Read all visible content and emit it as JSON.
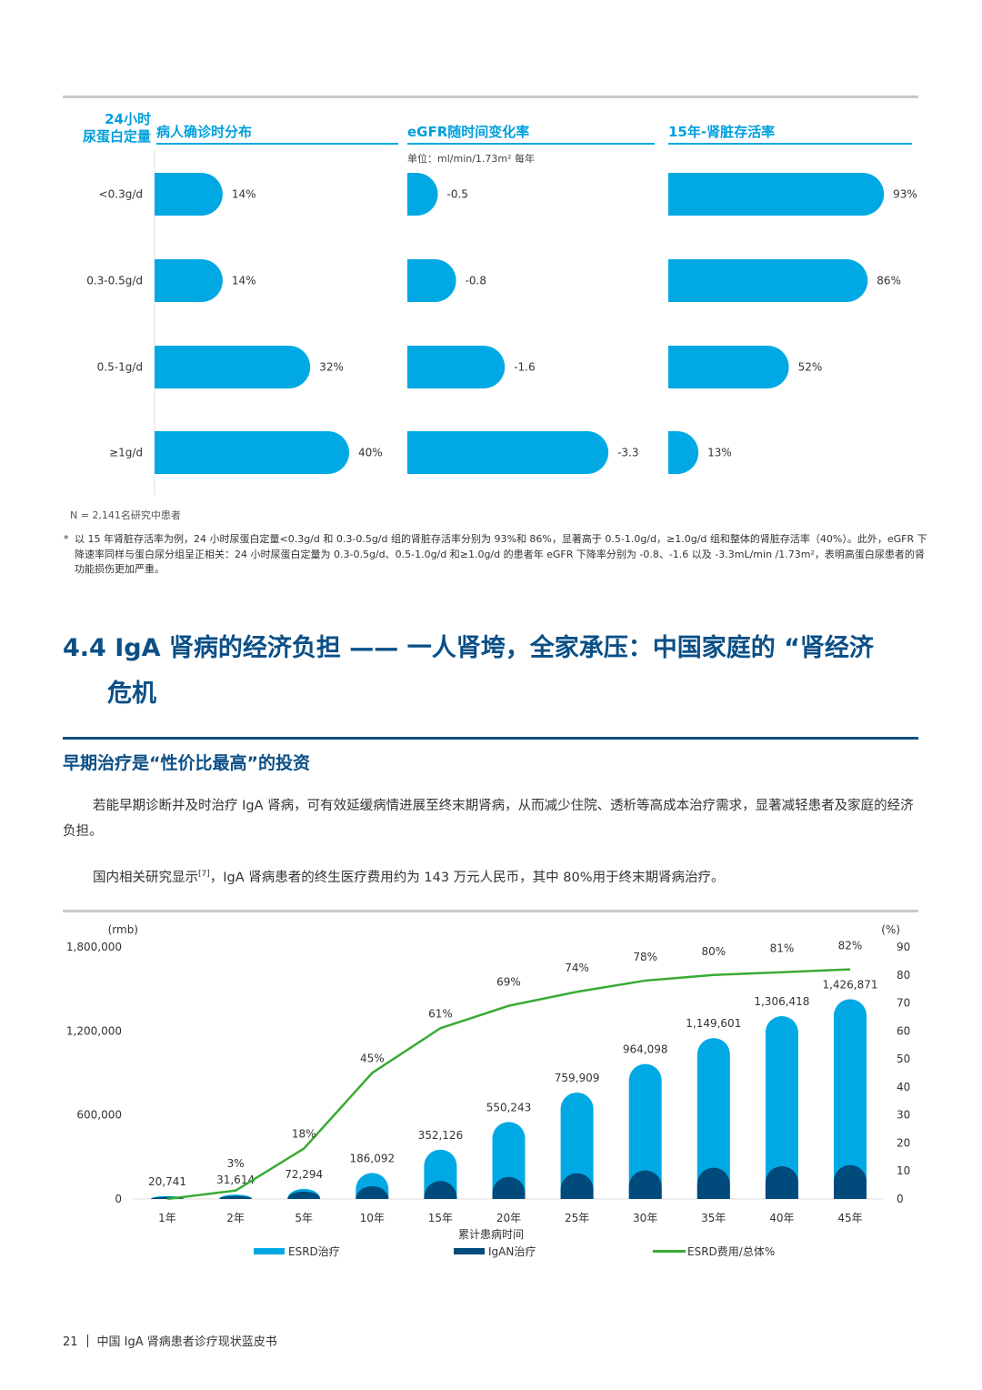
{
  "top_section": {
    "row_header": "24小时\n尿蛋白定量",
    "unit": "单位：ml/min/1.73m² 每年",
    "note_n": "N = 2,141名研究中患者",
    "footnote_star": "*",
    "footnote": "以 15 年肾脏存活率为例，24 小时尿蛋白定量<0.3g/d 和 0.3-0.5g/d 组的肾脏存活率分别为 93%和 86%，显著高于 0.5-1.0g/d，≥1.0g/d 组和整体的肾脏存活率（40%）。此外，eGFR 下降速率同样与蛋白尿分组呈正相关：24 小时尿蛋白定量为 0.3-0.5g/d、0.5-1.0g/d 和≥1.0g/d 的患者年 eGFR 下降率分别为 -0.8、-1.6 以及 -3.3mL/min /1.73m²，表明高蛋白尿患者的肾功能损伤更加严重。"
  },
  "chart_data": [
    {
      "type": "bar",
      "orientation": "horizontal",
      "title": "病人确诊时分布",
      "categories": [
        "<0.3g/d",
        "0.3-0.5g/d",
        "0.5-1g/d",
        "≥1g/d"
      ],
      "values": [
        14,
        14,
        32,
        40
      ],
      "labels": [
        "14%",
        "14%",
        "32%",
        "40%"
      ],
      "color": "#00a9e4"
    },
    {
      "type": "bar",
      "orientation": "horizontal",
      "title": "eGFR随时间变化率",
      "categories": [
        "<0.3g/d",
        "0.3-0.5g/d",
        "0.5-1g/d",
        "≥1g/d"
      ],
      "values": [
        -0.5,
        -0.8,
        -1.6,
        -3.3
      ],
      "labels": [
        "-0.5",
        "-0.8",
        "-1.6",
        "-3.3"
      ],
      "color": "#00a9e4"
    },
    {
      "type": "bar",
      "orientation": "horizontal",
      "title": "15年-肾脏存活率",
      "categories": [
        "<0.3g/d",
        "0.3-0.5g/d",
        "0.5-1g/d",
        "≥1g/d"
      ],
      "values": [
        93,
        86,
        52,
        13
      ],
      "labels": [
        "93%",
        "86%",
        "52%",
        "13%"
      ],
      "color": "#00a9e4"
    },
    {
      "type": "bar+line",
      "xlabel": "累计患病时间",
      "ylabel_left": "(rmb)",
      "ylabel_right": "(%)",
      "ylim_left": [
        0,
        1800000
      ],
      "yticks_left": [
        "0",
        "600,000",
        "1,200,000",
        "1,800,000"
      ],
      "ylim_right": [
        0,
        90
      ],
      "yticks_right": [
        "0",
        "10",
        "20",
        "30",
        "40",
        "50",
        "60",
        "70",
        "80",
        "90"
      ],
      "categories": [
        "1年",
        "2年",
        "5年",
        "10年",
        "15年",
        "20年",
        "25年",
        "30年",
        "35年",
        "40年",
        "45年"
      ],
      "series": [
        {
          "name": "ESRD治疗",
          "kind": "bar",
          "color": "#00a9e4",
          "values": [
            20741,
            31614,
            72294,
            186092,
            352126,
            550243,
            759909,
            964098,
            1149601,
            1306418,
            1426871
          ],
          "labels": [
            "20,741",
            "31,614",
            "72,294",
            "186,092",
            "352,126",
            "550,243",
            "759,909",
            "964,098",
            "1,149,601",
            "1,306,418",
            "1,426,871"
          ]
        },
        {
          "name": "IgAN治疗",
          "kind": "bar",
          "color": "#004a7c",
          "values": [
            15000,
            22000,
            54000,
            91000,
            128000,
            158000,
            184000,
            205000,
            223000,
            234000,
            242000
          ]
        },
        {
          "name": "ESRD费用/总体%",
          "kind": "line",
          "axis": "right",
          "color": "#3aaa35",
          "values": [
            0,
            3,
            18,
            45,
            61,
            69,
            74,
            78,
            80,
            81,
            82
          ],
          "labels": [
            "",
            "3%",
            "18%",
            "45%",
            "61%",
            "69%",
            "74%",
            "78%",
            "80%",
            "81%",
            "82%"
          ]
        }
      ],
      "legend": "bottom"
    }
  ],
  "section": {
    "title_line1": "4.4 IgA 肾病的经济负担 —— 一人肾垮，全家承压：中国家庭的 “肾经济",
    "title_line2": "危机",
    "subheading": "早期治疗是“性价比最高”的投资",
    "para1": "若能早期诊断并及时治疗 IgA 肾病，可有效延缓病情进展至终末期肾病，从而减少住院、透析等高成本治疗需求，显著减轻患者及家庭的经济负担。",
    "para2_a": "国内相关研究显示",
    "para2_ref": "[7]",
    "para2_b": "，IgA 肾病患者的终生医疗费用约为 143 万元人民币，其中 80%用于终末期肾病治疗。"
  },
  "footer": {
    "page_number": "21",
    "doc_title": "中国 IgA 肾病患者诊疗现状蓝皮书"
  }
}
